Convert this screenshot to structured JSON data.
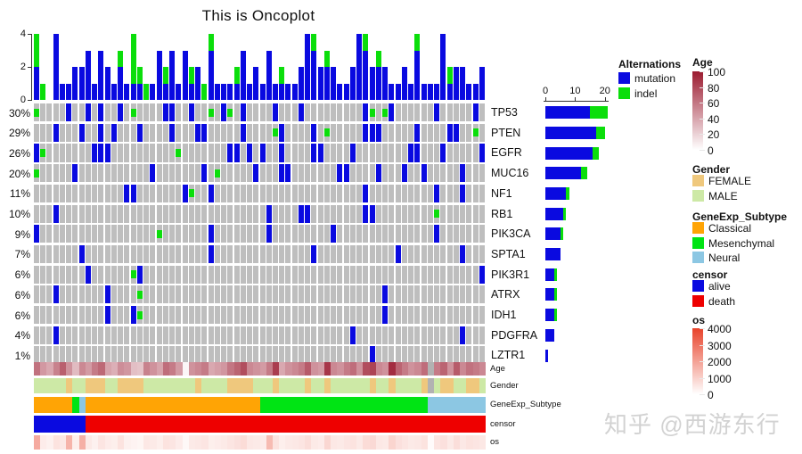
{
  "title": "This is Oncoplot",
  "watermark": "知乎 @西游东行",
  "colors": {
    "mutation": "#0a0ae0",
    "indel": "#0bde0b",
    "empty_cell": "#bebebe",
    "na_cell": "#b2b2b2",
    "age_high": "#9b1b30",
    "os_high": "#e8432b",
    "axis": "#333333"
  },
  "chart_data": {
    "type": "heatmap",
    "variant": "oncoplot",
    "n_samples": 70,
    "top_bar": {
      "ylabel": "",
      "ylim": [
        0,
        4
      ],
      "ticks": [
        0,
        2,
        4
      ],
      "series": [
        {
          "name": "mutation",
          "values": [
            2,
            0,
            0,
            4,
            1,
            1,
            2,
            2,
            3,
            1,
            3,
            2,
            1,
            2,
            1,
            1,
            1,
            0,
            1,
            3,
            1,
            3,
            1,
            3,
            1,
            2,
            0,
            3,
            1,
            1,
            1,
            1,
            3,
            1,
            2,
            1,
            3,
            1,
            1,
            1,
            1,
            2,
            4,
            3,
            2,
            2,
            2,
            1,
            1,
            2,
            4,
            3,
            2,
            2,
            2,
            1,
            1,
            2,
            1,
            3,
            1,
            1,
            1,
            4,
            1,
            2,
            2,
            1,
            1,
            2
          ]
        },
        {
          "name": "indel",
          "values": [
            2,
            1,
            0,
            0,
            0,
            0,
            0,
            0,
            0,
            0,
            0,
            0,
            0,
            1,
            0,
            3,
            1,
            1,
            0,
            0,
            1,
            0,
            0,
            0,
            1,
            0,
            1,
            1,
            0,
            0,
            0,
            1,
            0,
            0,
            0,
            0,
            0,
            0,
            1,
            0,
            0,
            0,
            0,
            1,
            0,
            1,
            0,
            0,
            0,
            0,
            0,
            1,
            0,
            1,
            0,
            0,
            0,
            0,
            0,
            1,
            0,
            0,
            0,
            0,
            1,
            0,
            0,
            0,
            0,
            0
          ]
        }
      ]
    },
    "alteration_legend": {
      "title": "Alternations",
      "items": [
        {
          "label": "mutation",
          "color": "#0a0ae0"
        },
        {
          "label": "indel",
          "color": "#0bde0b"
        }
      ]
    },
    "gene_bar_axis": {
      "ticks": [
        0,
        10,
        20
      ],
      "max": 22
    },
    "genes": [
      {
        "name": "TP53",
        "pct": "30%",
        "mutation_count": 15,
        "indel_count": 6,
        "pattern": "I....M..M.M..M.I....MM..M..I.MI.M....M...M.........MI.IM......M.....M."
      },
      {
        "name": "PTEN",
        "pct": "29%",
        "mutation_count": 17,
        "indel_count": 3,
        "pattern": "...M...M..M.M...M....M...MM.....M....IM....M.I.....MMM.....M....MM..I."
      },
      {
        "name": "EGFR",
        "pct": "26%",
        "mutation_count": 16,
        "indel_count": 2,
        "pattern": "MI.......MMM..........I.......MM.M.M..M....MM....M........MM...M.....M"
      },
      {
        "name": "MUC16",
        "pct": "20%",
        "mutation_count": 12,
        "indel_count": 2,
        "pattern": "I.....M...........M.......M.I.....M...MM.......MM....M...M..M.....M..."
      },
      {
        "name": "NF1",
        "pct": "11%",
        "mutation_count": 7,
        "indel_count": 1,
        "pattern": "..............MM.......MI..M.......................M..........M...M..."
      },
      {
        "name": "RB1",
        "pct": "10%",
        "mutation_count": 6,
        "indel_count": 1,
        "pattern": "...M................................M....MM........MM.........I......."
      },
      {
        "name": "PIK3CA",
        "pct": "9%",
        "mutation_count": 5,
        "indel_count": 1,
        "pattern": "M..................I.......M........M.........M...............M......."
      },
      {
        "name": "SPTA1",
        "pct": "7%",
        "mutation_count": 5,
        "indel_count": 0,
        "pattern": ".......M...................M...............M............M.........M..."
      },
      {
        "name": "PIK3R1",
        "pct": "6%",
        "mutation_count": 3,
        "indel_count": 1,
        "pattern": "........M......IM....................................................M"
      },
      {
        "name": "ATRX",
        "pct": "6%",
        "mutation_count": 3,
        "indel_count": 1,
        "pattern": "...M.......M....I.....................................M..............."
      },
      {
        "name": "IDH1",
        "pct": "6%",
        "mutation_count": 3,
        "indel_count": 1,
        "pattern": "...........M...MI.....................................M..............."
      },
      {
        "name": "PDGFRA",
        "pct": "4%",
        "mutation_count": 3,
        "indel_count": 0,
        "pattern": "...M.............................................M................M..."
      },
      {
        "name": "LZTR1",
        "pct": "1%",
        "mutation_count": 1,
        "indel_count": 0,
        "pattern": "....................................................M................."
      }
    ],
    "annotations": [
      {
        "name": "Age",
        "type": "gradient",
        "domain": [
          0,
          100
        ],
        "values": [
          62,
          45,
          38,
          55,
          70,
          48,
          30,
          52,
          44,
          58,
          66,
          40,
          35,
          50,
          46,
          28,
          26,
          55,
          48,
          40,
          64,
          58,
          44,
          4,
          48,
          52,
          58,
          38,
          42,
          46,
          60,
          68,
          78,
          52,
          48,
          44,
          58,
          85,
          38,
          48,
          52,
          58,
          72,
          48,
          44,
          88,
          52,
          48,
          58,
          64,
          48,
          78,
          82,
          52,
          48,
          92,
          68,
          58,
          48,
          52,
          64,
          null,
          58,
          68,
          48,
          72,
          52,
          62,
          58,
          52
        ]
      },
      {
        "name": "Gender",
        "type": "categorical",
        "values": [
          "MALE",
          "MALE",
          "MALE",
          "MALE",
          "MALE",
          "FEMALE",
          "MALE",
          "MALE",
          "FEMALE",
          "FEMALE",
          "FEMALE",
          "MALE",
          "MALE",
          "FEMALE",
          "FEMALE",
          "FEMALE",
          "FEMALE",
          "MALE",
          "MALE",
          "MALE",
          "MALE",
          "MALE",
          "MALE",
          "MALE",
          "MALE",
          "FEMALE",
          "MALE",
          "MALE",
          "MALE",
          "MALE",
          "FEMALE",
          "FEMALE",
          "FEMALE",
          "FEMALE",
          "MALE",
          "MALE",
          "MALE",
          "FEMALE",
          "MALE",
          "MALE",
          "MALE",
          "MALE",
          "FEMALE",
          "MALE",
          "MALE",
          "FEMALE",
          "MALE",
          "MALE",
          "MALE",
          "MALE",
          "MALE",
          "MALE",
          "FEMALE",
          "MALE",
          "MALE",
          "FEMALE",
          "MALE",
          "MALE",
          "MALE",
          "MALE",
          "FEMALE",
          null,
          "MALE",
          "FEMALE",
          "FEMALE",
          "MALE",
          "MALE",
          "FEMALE",
          "FEMALE",
          "MALE"
        ]
      },
      {
        "name": "GeneExp_Subtype",
        "type": "categorical",
        "values": [
          "Classical",
          "Classical",
          "Classical",
          "Classical",
          "Classical",
          "Classical",
          "Mesenchymal",
          "Neural",
          "Classical",
          "Classical",
          "Classical",
          "Classical",
          "Classical",
          "Classical",
          "Classical",
          "Classical",
          "Classical",
          "Classical",
          "Classical",
          "Classical",
          "Classical",
          "Classical",
          "Classical",
          "Classical",
          "Classical",
          "Classical",
          "Classical",
          "Classical",
          "Classical",
          "Classical",
          "Classical",
          "Classical",
          "Classical",
          "Classical",
          "Classical",
          "Mesenchymal",
          "Mesenchymal",
          "Mesenchymal",
          "Mesenchymal",
          "Mesenchymal",
          "Mesenchymal",
          "Mesenchymal",
          "Mesenchymal",
          "Mesenchymal",
          "Mesenchymal",
          "Mesenchymal",
          "Mesenchymal",
          "Mesenchymal",
          "Mesenchymal",
          "Mesenchymal",
          "Mesenchymal",
          "Mesenchymal",
          "Mesenchymal",
          "Mesenchymal",
          "Mesenchymal",
          "Mesenchymal",
          "Mesenchymal",
          "Mesenchymal",
          "Mesenchymal",
          "Mesenchymal",
          "Mesenchymal",
          "Neural",
          "Neural",
          "Neural",
          "Neural",
          "Neural",
          "Neural",
          "Neural",
          "Neural",
          "Neural"
        ]
      },
      {
        "name": "censor",
        "type": "categorical",
        "values": [
          "alive",
          "alive",
          "alive",
          "alive",
          "alive",
          "alive",
          "alive",
          "alive",
          "death",
          "death",
          "death",
          "death",
          "death",
          "death",
          "death",
          "death",
          "death",
          "death",
          "death",
          "death",
          "death",
          "death",
          "death",
          "death",
          "death",
          "death",
          "death",
          "death",
          "death",
          "death",
          "death",
          "death",
          "death",
          "death",
          "death",
          "death",
          "death",
          "death",
          "death",
          "death",
          "death",
          "death",
          "death",
          "death",
          "death",
          "death",
          "death",
          "death",
          "death",
          "death",
          "death",
          "death",
          "death",
          "death",
          "death",
          "death",
          "death",
          "death",
          "death",
          "death",
          "death",
          "death",
          "death",
          "death",
          "death",
          "death",
          "death",
          "death",
          "death",
          "death"
        ]
      },
      {
        "name": "os",
        "type": "gradient",
        "domain": [
          0,
          4000
        ],
        "values": [
          1800,
          400,
          300,
          600,
          500,
          1600,
          350,
          1700,
          450,
          300,
          550,
          400,
          350,
          600,
          300,
          250,
          200,
          500,
          450,
          350,
          600,
          550,
          400,
          150,
          450,
          500,
          550,
          350,
          400,
          450,
          550,
          650,
          750,
          500,
          450,
          400,
          1450,
          600,
          350,
          450,
          500,
          550,
          700,
          450,
          400,
          850,
          500,
          450,
          550,
          600,
          450,
          750,
          800,
          500,
          450,
          900,
          650,
          550,
          450,
          500,
          600,
          80,
          550,
          650,
          450,
          700,
          500,
          600,
          550,
          500
        ]
      }
    ],
    "legends": {
      "age": {
        "title": "Age",
        "ticks": [
          0,
          20,
          40,
          60,
          80,
          100
        ],
        "color_low": "#ffffff",
        "color_high": "#9b1b30"
      },
      "gender": {
        "title": "Gender",
        "items": [
          {
            "label": "FEMALE",
            "color": "#efc87d"
          },
          {
            "label": "MALE",
            "color": "#cde9a6"
          }
        ]
      },
      "subtype": {
        "title": "GeneExp_Subtype",
        "items": [
          {
            "label": "Classical",
            "color": "#ffa405"
          },
          {
            "label": "Mesenchymal",
            "color": "#00e414"
          },
          {
            "label": "Neural",
            "color": "#8cc7e3"
          }
        ]
      },
      "censor": {
        "title": "censor",
        "items": [
          {
            "label": "alive",
            "color": "#0a0ae0"
          },
          {
            "label": "death",
            "color": "#ee0000"
          }
        ]
      },
      "os": {
        "title": "os",
        "ticks": [
          0,
          1000,
          2000,
          3000,
          4000
        ],
        "color_low": "#ffffff",
        "color_high": "#e8432b"
      }
    }
  }
}
